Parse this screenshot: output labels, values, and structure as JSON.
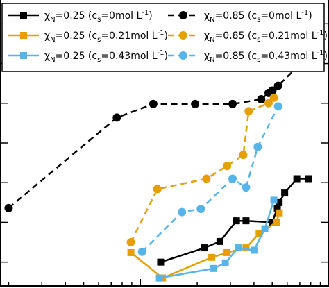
{
  "chart_data": {
    "type": "line",
    "title": "",
    "xlabel": "",
    "ylabel": "",
    "x_scale": "log",
    "xlim": [
      0.0018,
      0.1
    ],
    "ylim": [
      -0.03,
      0.33
    ],
    "legend_position": "top",
    "series": [
      {
        "name": "χN=0.25 (cs=0mol L⁻¹)",
        "legend": {
          "symbol": "χ",
          "sub": "N",
          "mid": "=0.25 (c",
          "sub2": "s",
          "tail": "=0mol L",
          "sup": "-1",
          "close": ")"
        },
        "color": "#000000",
        "dash": "solid",
        "marker": "square",
        "points": [
          {
            "x": 0.0128,
            "y": 0.0
          },
          {
            "x": 0.0219,
            "y": 0.018
          },
          {
            "x": 0.0264,
            "y": 0.026
          },
          {
            "x": 0.0323,
            "y": 0.052
          },
          {
            "x": 0.0363,
            "y": 0.052
          },
          {
            "x": 0.05,
            "y": 0.05
          },
          {
            "x": 0.0532,
            "y": 0.068
          },
          {
            "x": 0.0544,
            "y": 0.075
          },
          {
            "x": 0.0582,
            "y": 0.087
          },
          {
            "x": 0.0675,
            "y": 0.105
          },
          {
            "x": 0.078,
            "y": 0.105
          }
        ]
      },
      {
        "name": "χN=0.25 (cs=0.21mol L⁻¹)",
        "legend": {
          "symbol": "χ",
          "sub": "N",
          "mid": "=0.25 (c",
          "sub2": "s",
          "tail": "=0.21mol L",
          "sup": "-1",
          "close": ")"
        },
        "color": "#e69f00",
        "dash": "solid",
        "marker": "square",
        "points": [
          {
            "x": 0.0089,
            "y": 0.012
          },
          {
            "x": 0.0131,
            "y": -0.02
          },
          {
            "x": 0.0239,
            "y": 0.006
          },
          {
            "x": 0.0288,
            "y": 0.012
          },
          {
            "x": 0.0363,
            "y": 0.018
          },
          {
            "x": 0.0426,
            "y": 0.036
          },
          {
            "x": 0.0525,
            "y": 0.05
          },
          {
            "x": 0.0545,
            "y": 0.062
          }
        ]
      },
      {
        "name": "χN=0.25 (cs=0.43mol L⁻¹)",
        "legend": {
          "symbol": "χ",
          "sub": "N",
          "mid": "=0.25 (c",
          "sub2": "s",
          "tail": "=0.43mol L",
          "sup": "-1",
          "close": ")"
        },
        "color": "#56b4e9",
        "dash": "solid",
        "marker": "square",
        "points": [
          {
            "x": 0.0126,
            "y": -0.02
          },
          {
            "x": 0.0245,
            "y": -0.008
          },
          {
            "x": 0.0282,
            "y": -0.001
          },
          {
            "x": 0.033,
            "y": 0.018
          },
          {
            "x": 0.04,
            "y": 0.015
          },
          {
            "x": 0.0457,
            "y": 0.042
          },
          {
            "x": 0.051,
            "y": 0.078
          }
        ]
      },
      {
        "name": "χN=0.85 (cs=0mol L⁻¹)",
        "legend": {
          "symbol": "χ",
          "sub": "N",
          "mid": "=0.85 (c",
          "sub2": "s",
          "tail": "=0mol L",
          "sup": "-1",
          "close": ")"
        },
        "color": "#000000",
        "dash": "dashed",
        "marker": "circle",
        "points": [
          {
            "x": 0.002,
            "y": 0.068
          },
          {
            "x": 0.0075,
            "y": 0.182
          },
          {
            "x": 0.0117,
            "y": 0.199
          },
          {
            "x": 0.0195,
            "y": 0.199
          },
          {
            "x": 0.0308,
            "y": 0.199
          },
          {
            "x": 0.0437,
            "y": 0.205
          },
          {
            "x": 0.0478,
            "y": 0.213
          },
          {
            "x": 0.0501,
            "y": 0.216
          },
          {
            "x": 0.0537,
            "y": 0.222
          },
          {
            "x": 0.0708,
            "y": 0.25
          },
          {
            "x": 0.0851,
            "y": 0.25
          }
        ]
      },
      {
        "name": "χN=0.85 (cs=0.21mol L⁻¹)",
        "legend": {
          "symbol": "χ",
          "sub": "N",
          "mid": "=0.85 (c",
          "sub2": "s",
          "tail": "=0.21mol L",
          "sup": "-1",
          "close": ")"
        },
        "color": "#e69f00",
        "dash": "dashed",
        "marker": "circle",
        "points": [
          {
            "x": 0.0089,
            "y": 0.025
          },
          {
            "x": 0.0123,
            "y": 0.092
          },
          {
            "x": 0.0224,
            "y": 0.105
          },
          {
            "x": 0.0288,
            "y": 0.121
          },
          {
            "x": 0.0351,
            "y": 0.135
          },
          {
            "x": 0.0375,
            "y": 0.19
          },
          {
            "x": 0.0478,
            "y": 0.2
          },
          {
            "x": 0.051,
            "y": 0.207
          }
        ]
      },
      {
        "name": "χN=0.85 (cs=0.43mol L⁻¹)",
        "legend": {
          "symbol": "χ",
          "sub": "N",
          "mid": "=0.85 (c",
          "sub2": "s",
          "tail": "=0.43mol L",
          "sup": "-1",
          "close": ")"
        },
        "color": "#56b4e9",
        "dash": "dashed",
        "marker": "circle",
        "points": [
          {
            "x": 0.0102,
            "y": 0.013
          },
          {
            "x": 0.0166,
            "y": 0.063
          },
          {
            "x": 0.0209,
            "y": 0.067
          },
          {
            "x": 0.0308,
            "y": 0.105
          },
          {
            "x": 0.0363,
            "y": 0.094
          },
          {
            "x": 0.0419,
            "y": 0.145
          },
          {
            "x": 0.0537,
            "y": 0.196
          }
        ]
      }
    ]
  }
}
